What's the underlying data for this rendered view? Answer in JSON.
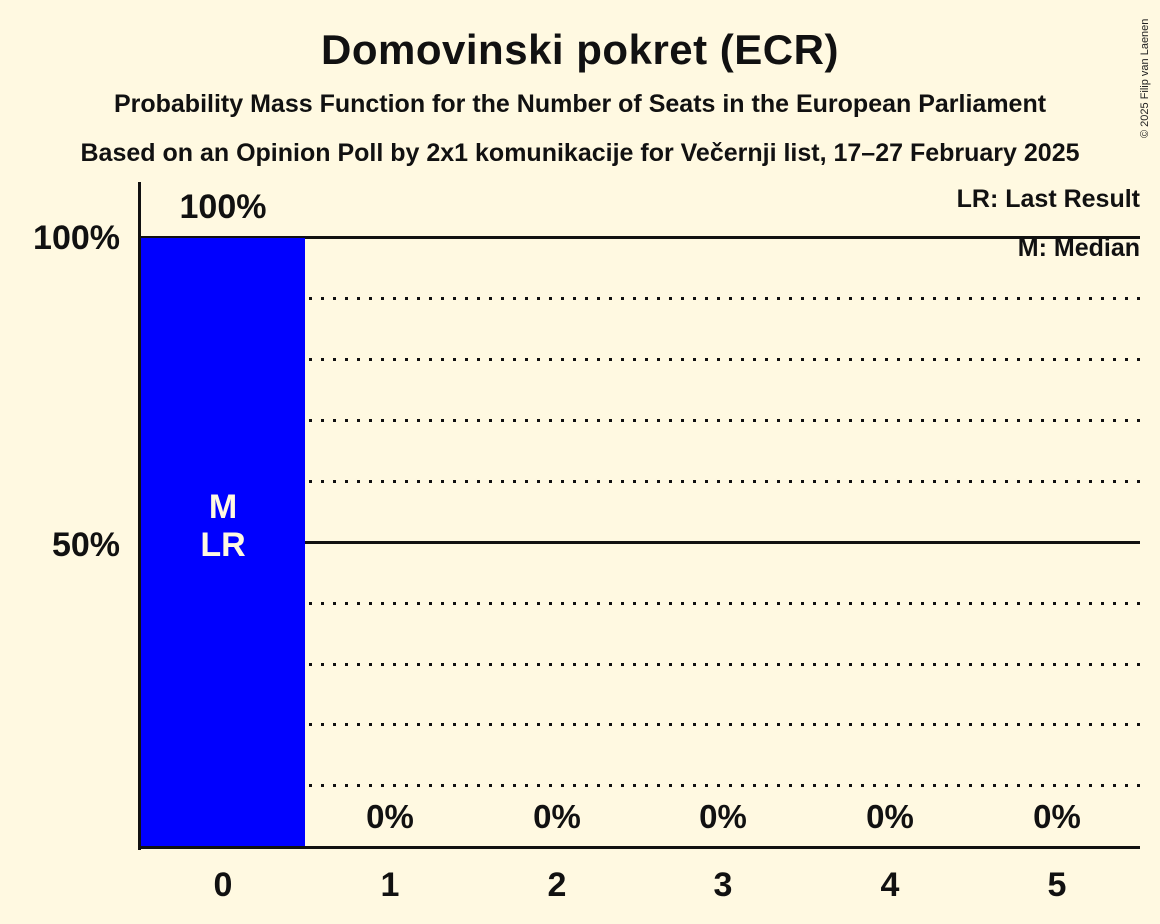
{
  "header": {
    "title": "Domovinski pokret (ECR)",
    "subtitle": "Probability Mass Function for the Number of Seats in the European Parliament",
    "source_line": "Based on an Opinion Poll by 2x1 komunikacije for Večernji list, 17–27 February 2025"
  },
  "copyright": "© 2025 Filip van Laenen",
  "legend": {
    "last_result": "LR: Last Result",
    "median": "M: Median"
  },
  "y_axis": {
    "label_100": "100%",
    "label_50": "50%"
  },
  "chart_data": {
    "type": "bar",
    "title": "Domovinski pokret (ECR)",
    "categories": [
      "0",
      "1",
      "2",
      "3",
      "4",
      "5"
    ],
    "values": [
      100,
      0,
      0,
      0,
      0,
      0
    ],
    "value_labels": [
      "100%",
      "0%",
      "0%",
      "0%",
      "0%",
      "0%"
    ],
    "ylim": [
      0,
      100
    ],
    "y_tick_labels": [
      "100%",
      "50%"
    ],
    "gridlines": {
      "solid_pct": [
        100,
        50
      ],
      "dotted_pct": [
        90,
        80,
        70,
        60,
        40,
        30,
        20,
        10
      ]
    },
    "median_seats": 0,
    "last_result_seats": 0,
    "median_marker": "M",
    "last_result_marker": "LR",
    "bar_color": "#0000ff",
    "bar_text_color": "#fff9e1",
    "background_color": "#fff9e1",
    "legend_position": "top-right",
    "grid": true
  }
}
